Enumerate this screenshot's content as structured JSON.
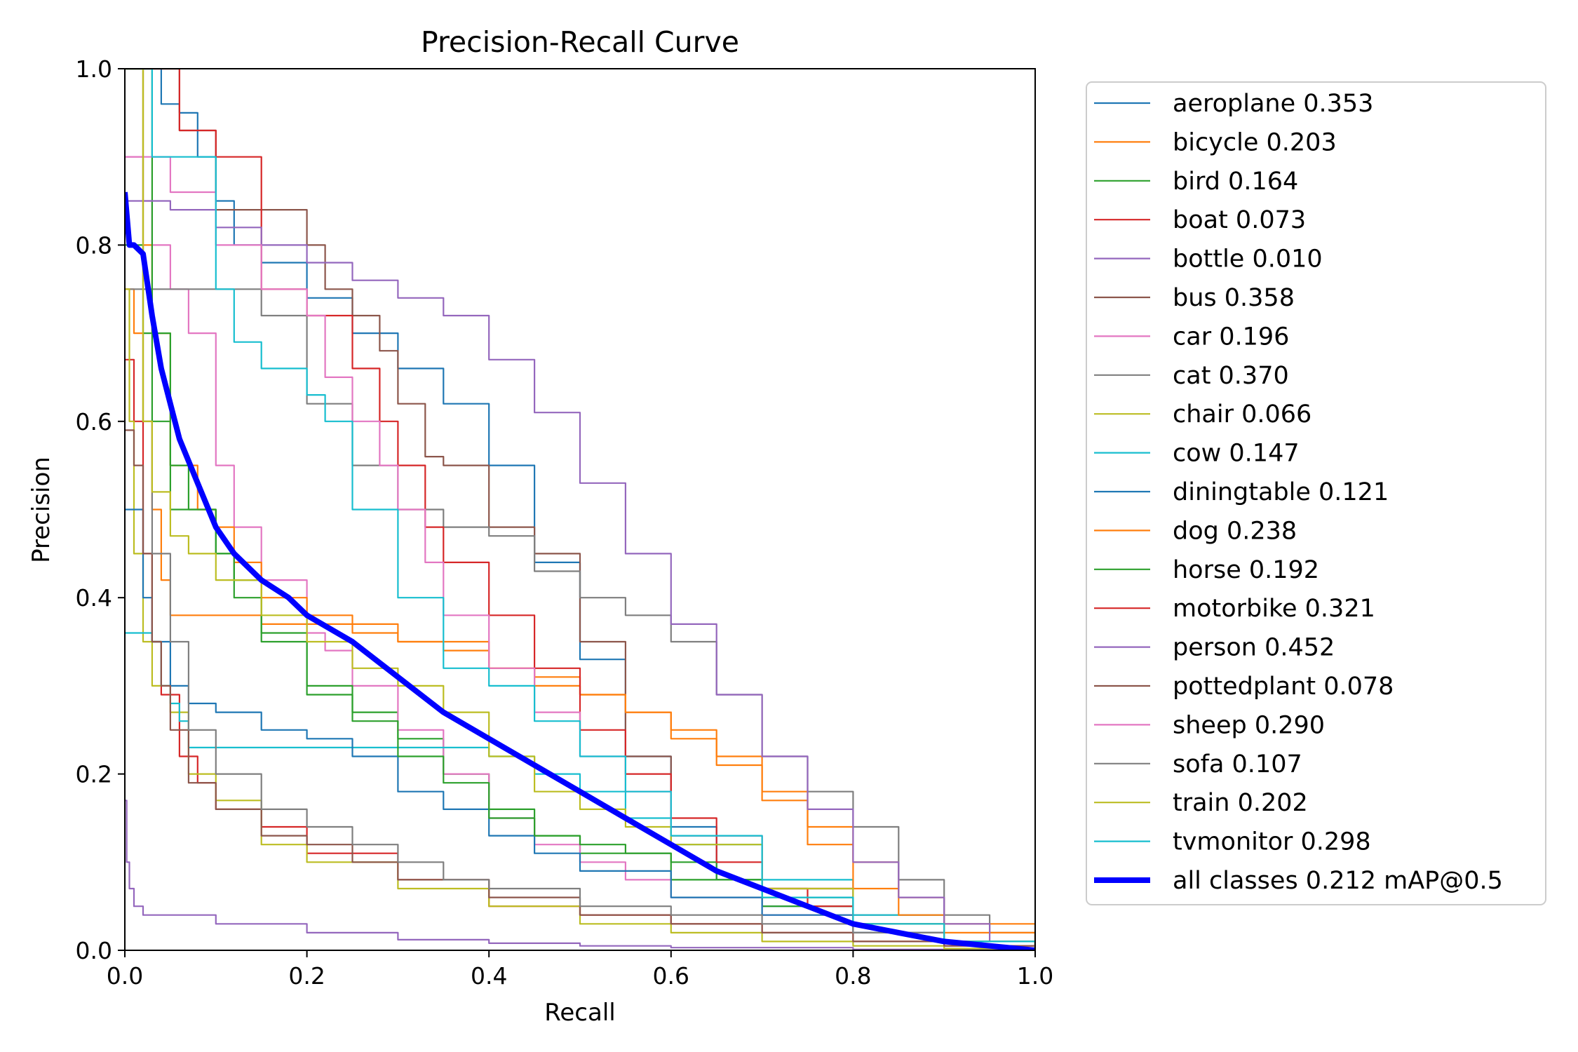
{
  "chart_data": {
    "type": "line",
    "title": "Precision-Recall Curve",
    "xlabel": "Recall",
    "ylabel": "Precision",
    "xlim": [
      0,
      1
    ],
    "ylim": [
      0,
      1
    ],
    "xticks": [
      "0.0",
      "0.2",
      "0.4",
      "0.6",
      "0.8",
      "1.0"
    ],
    "yticks": [
      "0.0",
      "0.2",
      "0.4",
      "0.6",
      "0.8",
      "1.0"
    ],
    "grid": false,
    "legend_position": "outside-right",
    "series": [
      {
        "name": "aeroplane 0.353",
        "color": "#1f77b4",
        "x": [
          0.0,
          0.02,
          0.04,
          0.06,
          0.08,
          0.1,
          0.12,
          0.15,
          0.2,
          0.25,
          0.3,
          0.35,
          0.4,
          0.45,
          0.5,
          0.55,
          0.6,
          0.65,
          0.7,
          0.8,
          0.9,
          1.0
        ],
        "y": [
          1.0,
          1.0,
          0.96,
          0.95,
          0.9,
          0.85,
          0.8,
          0.78,
          0.74,
          0.7,
          0.66,
          0.62,
          0.55,
          0.44,
          0.33,
          0.22,
          0.14,
          0.08,
          0.05,
          0.03,
          0.01,
          0.0
        ]
      },
      {
        "name": "bicycle 0.203",
        "color": "#ff7f0e",
        "x": [
          0.0,
          0.01,
          0.02,
          0.03,
          0.04,
          0.05,
          0.07,
          0.1,
          0.15,
          0.2,
          0.3,
          0.4,
          0.45,
          0.5,
          0.55,
          0.6,
          0.65,
          0.7,
          0.75,
          0.8,
          0.85,
          0.9,
          1.0
        ],
        "y": [
          0.75,
          0.7,
          0.6,
          0.5,
          0.42,
          0.38,
          0.38,
          0.38,
          0.37,
          0.37,
          0.35,
          0.32,
          0.3,
          0.29,
          0.27,
          0.25,
          0.22,
          0.18,
          0.14,
          0.1,
          0.06,
          0.03,
          0.0
        ]
      },
      {
        "name": "bird 0.164",
        "color": "#2ca02c",
        "x": [
          0.0,
          0.02,
          0.03,
          0.05,
          0.07,
          0.1,
          0.12,
          0.15,
          0.2,
          0.25,
          0.3,
          0.35,
          0.4,
          0.45,
          0.5,
          0.6,
          0.7,
          0.8,
          0.9,
          1.0
        ],
        "y": [
          0.8,
          0.7,
          0.6,
          0.5,
          0.5,
          0.45,
          0.42,
          0.36,
          0.29,
          0.27,
          0.24,
          0.2,
          0.16,
          0.13,
          0.11,
          0.08,
          0.05,
          0.02,
          0.01,
          0.0
        ]
      },
      {
        "name": "boat 0.073",
        "color": "#d62728",
        "x": [
          0.0,
          0.01,
          0.02,
          0.03,
          0.04,
          0.06,
          0.08,
          0.1,
          0.15,
          0.2,
          0.3,
          0.4,
          0.5,
          0.6,
          0.7,
          0.8,
          0.9,
          1.0
        ],
        "y": [
          0.67,
          0.6,
          0.45,
          0.35,
          0.29,
          0.22,
          0.19,
          0.16,
          0.14,
          0.11,
          0.08,
          0.05,
          0.04,
          0.03,
          0.02,
          0.01,
          0.005,
          0.0
        ]
      },
      {
        "name": "bottle 0.010",
        "color": "#9467bd",
        "x": [
          0.0,
          0.002,
          0.005,
          0.01,
          0.02,
          0.05,
          0.1,
          0.2,
          0.3,
          0.4,
          0.5,
          0.6,
          0.8,
          1.0
        ],
        "y": [
          0.17,
          0.1,
          0.07,
          0.05,
          0.04,
          0.04,
          0.03,
          0.02,
          0.012,
          0.008,
          0.005,
          0.003,
          0.001,
          0.0
        ]
      },
      {
        "name": "bus 0.358",
        "color": "#8c564b",
        "x": [
          0.0,
          0.05,
          0.06,
          0.08,
          0.1,
          0.15,
          0.2,
          0.22,
          0.25,
          0.28,
          0.3,
          0.33,
          0.35,
          0.4,
          0.45,
          0.5,
          0.55,
          0.6,
          0.7,
          0.8,
          0.9,
          1.0
        ],
        "y": [
          1.0,
          1.0,
          0.93,
          0.93,
          0.84,
          0.84,
          0.8,
          0.75,
          0.72,
          0.68,
          0.62,
          0.56,
          0.55,
          0.48,
          0.45,
          0.35,
          0.22,
          0.13,
          0.07,
          0.04,
          0.01,
          0.0
        ]
      },
      {
        "name": "car 0.196",
        "color": "#e377c2",
        "x": [
          0.0,
          0.02,
          0.03,
          0.05,
          0.07,
          0.1,
          0.12,
          0.15,
          0.2,
          0.22,
          0.25,
          0.3,
          0.35,
          0.4,
          0.45,
          0.5,
          0.55,
          0.6,
          0.7,
          0.8,
          0.9,
          1.0
        ],
        "y": [
          0.9,
          0.85,
          0.8,
          0.75,
          0.7,
          0.55,
          0.48,
          0.42,
          0.36,
          0.34,
          0.3,
          0.25,
          0.2,
          0.15,
          0.12,
          0.1,
          0.08,
          0.06,
          0.04,
          0.02,
          0.01,
          0.0
        ]
      },
      {
        "name": "cat 0.370",
        "color": "#7f7f7f",
        "x": [
          0.0,
          0.05,
          0.1,
          0.15,
          0.2,
          0.25,
          0.3,
          0.35,
          0.4,
          0.45,
          0.5,
          0.55,
          0.6,
          0.65,
          0.7,
          0.75,
          0.8,
          0.85,
          0.9,
          0.95,
          1.0
        ],
        "y": [
          0.75,
          0.75,
          0.75,
          0.72,
          0.62,
          0.55,
          0.5,
          0.48,
          0.47,
          0.43,
          0.4,
          0.38,
          0.35,
          0.29,
          0.22,
          0.18,
          0.14,
          0.08,
          0.04,
          0.02,
          0.0
        ]
      },
      {
        "name": "chair 0.066",
        "color": "#bcbd22",
        "x": [
          0.0,
          0.005,
          0.01,
          0.02,
          0.03,
          0.05,
          0.07,
          0.1,
          0.15,
          0.2,
          0.3,
          0.4,
          0.5,
          0.6,
          0.7,
          0.8,
          0.9,
          1.0
        ],
        "y": [
          0.75,
          0.6,
          0.45,
          0.35,
          0.3,
          0.27,
          0.2,
          0.17,
          0.12,
          0.1,
          0.07,
          0.05,
          0.03,
          0.02,
          0.01,
          0.005,
          0.002,
          0.0
        ]
      },
      {
        "name": "cow 0.147",
        "color": "#17becf",
        "x": [
          0.0,
          0.01,
          0.02,
          0.03,
          0.04,
          0.05,
          0.06,
          0.07,
          0.1,
          0.15,
          0.2,
          0.25,
          0.3,
          0.35,
          0.4,
          0.45,
          0.5,
          0.55,
          0.6,
          0.7,
          0.8,
          0.9,
          1.0
        ],
        "y": [
          0.36,
          0.36,
          0.36,
          0.35,
          0.3,
          0.28,
          0.26,
          0.23,
          0.23,
          0.23,
          0.23,
          0.23,
          0.23,
          0.23,
          0.22,
          0.2,
          0.18,
          0.15,
          0.12,
          0.08,
          0.04,
          0.01,
          0.0
        ]
      },
      {
        "name": "diningtable 0.121",
        "color": "#1f77b4",
        "x": [
          0.0,
          0.02,
          0.03,
          0.05,
          0.07,
          0.1,
          0.15,
          0.2,
          0.25,
          0.3,
          0.35,
          0.4,
          0.45,
          0.5,
          0.6,
          0.7,
          0.8,
          0.9,
          1.0
        ],
        "y": [
          0.5,
          0.4,
          0.35,
          0.3,
          0.28,
          0.27,
          0.25,
          0.24,
          0.22,
          0.18,
          0.16,
          0.13,
          0.11,
          0.09,
          0.06,
          0.04,
          0.02,
          0.01,
          0.0
        ]
      },
      {
        "name": "dog 0.238",
        "color": "#ff7f0e",
        "x": [
          0.0,
          0.02,
          0.03,
          0.05,
          0.08,
          0.1,
          0.12,
          0.15,
          0.2,
          0.25,
          0.3,
          0.35,
          0.4,
          0.45,
          0.5,
          0.55,
          0.6,
          0.65,
          0.7,
          0.75,
          0.8,
          0.85,
          0.9,
          1.0
        ],
        "y": [
          1.0,
          0.8,
          0.7,
          0.55,
          0.5,
          0.48,
          0.44,
          0.4,
          0.38,
          0.36,
          0.35,
          0.34,
          0.32,
          0.31,
          0.29,
          0.27,
          0.24,
          0.21,
          0.17,
          0.12,
          0.07,
          0.04,
          0.02,
          0.0
        ]
      },
      {
        "name": "horse 0.192",
        "color": "#2ca02c",
        "x": [
          0.0,
          0.03,
          0.05,
          0.07,
          0.1,
          0.12,
          0.15,
          0.2,
          0.25,
          0.3,
          0.35,
          0.4,
          0.45,
          0.5,
          0.55,
          0.6,
          0.65,
          0.7,
          0.8,
          0.9,
          1.0
        ],
        "y": [
          1.0,
          0.7,
          0.55,
          0.5,
          0.45,
          0.4,
          0.35,
          0.3,
          0.26,
          0.22,
          0.19,
          0.15,
          0.13,
          0.12,
          0.11,
          0.1,
          0.08,
          0.06,
          0.03,
          0.01,
          0.0
        ]
      },
      {
        "name": "motorbike 0.321",
        "color": "#d62728",
        "x": [
          0.0,
          0.06,
          0.08,
          0.1,
          0.15,
          0.2,
          0.25,
          0.28,
          0.3,
          0.33,
          0.35,
          0.4,
          0.45,
          0.5,
          0.55,
          0.6,
          0.65,
          0.7,
          0.75,
          0.8,
          0.9,
          1.0
        ],
        "y": [
          1.0,
          0.93,
          0.93,
          0.9,
          0.75,
          0.72,
          0.66,
          0.6,
          0.55,
          0.48,
          0.44,
          0.38,
          0.32,
          0.25,
          0.2,
          0.15,
          0.1,
          0.07,
          0.05,
          0.03,
          0.01,
          0.0
        ]
      },
      {
        "name": "person 0.452",
        "color": "#9467bd",
        "x": [
          0.0,
          0.05,
          0.1,
          0.15,
          0.2,
          0.25,
          0.3,
          0.35,
          0.4,
          0.45,
          0.5,
          0.55,
          0.6,
          0.65,
          0.7,
          0.75,
          0.8,
          0.85,
          0.9,
          0.95,
          1.0
        ],
        "y": [
          0.85,
          0.84,
          0.82,
          0.8,
          0.78,
          0.76,
          0.74,
          0.72,
          0.67,
          0.61,
          0.53,
          0.45,
          0.37,
          0.29,
          0.22,
          0.16,
          0.1,
          0.06,
          0.03,
          0.01,
          0.0
        ]
      },
      {
        "name": "pottedplant 0.078",
        "color": "#8c564b",
        "x": [
          0.0,
          0.01,
          0.02,
          0.03,
          0.04,
          0.05,
          0.07,
          0.1,
          0.15,
          0.2,
          0.25,
          0.3,
          0.4,
          0.5,
          0.6,
          0.7,
          0.8,
          0.9,
          1.0
        ],
        "y": [
          0.59,
          0.55,
          0.45,
          0.35,
          0.3,
          0.25,
          0.19,
          0.16,
          0.13,
          0.12,
          0.1,
          0.08,
          0.06,
          0.04,
          0.03,
          0.02,
          0.01,
          0.005,
          0.0
        ]
      },
      {
        "name": "sheep 0.290",
        "color": "#e377c2",
        "x": [
          0.0,
          0.05,
          0.1,
          0.15,
          0.2,
          0.22,
          0.25,
          0.28,
          0.3,
          0.33,
          0.35,
          0.4,
          0.45,
          0.5,
          0.55,
          0.6,
          0.7,
          0.8,
          0.9,
          1.0
        ],
        "y": [
          0.9,
          0.86,
          0.8,
          0.75,
          0.72,
          0.65,
          0.6,
          0.55,
          0.5,
          0.44,
          0.38,
          0.32,
          0.27,
          0.22,
          0.18,
          0.13,
          0.07,
          0.03,
          0.01,
          0.0
        ]
      },
      {
        "name": "sofa 0.107",
        "color": "#7f7f7f",
        "x": [
          0.0,
          0.02,
          0.03,
          0.05,
          0.07,
          0.1,
          0.15,
          0.2,
          0.25,
          0.3,
          0.35,
          0.4,
          0.5,
          0.6,
          0.7,
          0.8,
          0.9,
          1.0
        ],
        "y": [
          1.0,
          0.6,
          0.45,
          0.35,
          0.25,
          0.2,
          0.16,
          0.14,
          0.12,
          0.1,
          0.08,
          0.07,
          0.05,
          0.04,
          0.03,
          0.02,
          0.01,
          0.0
        ]
      },
      {
        "name": "train 0.202",
        "color": "#bcbd22",
        "x": [
          0.0,
          0.02,
          0.03,
          0.05,
          0.07,
          0.1,
          0.15,
          0.2,
          0.25,
          0.3,
          0.35,
          0.4,
          0.45,
          0.5,
          0.55,
          0.6,
          0.7,
          0.8,
          0.9,
          1.0
        ],
        "y": [
          1.0,
          0.6,
          0.52,
          0.47,
          0.45,
          0.42,
          0.38,
          0.35,
          0.32,
          0.3,
          0.27,
          0.22,
          0.18,
          0.16,
          0.14,
          0.12,
          0.07,
          0.03,
          0.01,
          0.0
        ]
      },
      {
        "name": "tvmonitor 0.298",
        "color": "#17becf",
        "x": [
          0.0,
          0.03,
          0.06,
          0.08,
          0.1,
          0.12,
          0.15,
          0.2,
          0.22,
          0.25,
          0.3,
          0.35,
          0.4,
          0.45,
          0.5,
          0.55,
          0.6,
          0.7,
          0.8,
          0.9,
          1.0
        ],
        "y": [
          1.0,
          0.9,
          0.9,
          0.9,
          0.75,
          0.69,
          0.66,
          0.63,
          0.6,
          0.5,
          0.4,
          0.32,
          0.3,
          0.26,
          0.22,
          0.18,
          0.13,
          0.06,
          0.03,
          0.01,
          0.0
        ]
      },
      {
        "name": "all classes 0.212 mAP@0.5",
        "color": "#0000ff",
        "bold": true,
        "x": [
          0.0,
          0.005,
          0.01,
          0.02,
          0.03,
          0.04,
          0.05,
          0.06,
          0.08,
          0.1,
          0.12,
          0.15,
          0.18,
          0.2,
          0.25,
          0.3,
          0.35,
          0.4,
          0.45,
          0.5,
          0.55,
          0.6,
          0.65,
          0.7,
          0.75,
          0.8,
          0.85,
          0.9,
          0.95,
          1.0
        ],
        "y": [
          0.86,
          0.8,
          0.8,
          0.79,
          0.72,
          0.66,
          0.62,
          0.58,
          0.53,
          0.48,
          0.45,
          0.42,
          0.4,
          0.38,
          0.35,
          0.31,
          0.27,
          0.24,
          0.21,
          0.18,
          0.15,
          0.12,
          0.09,
          0.07,
          0.05,
          0.03,
          0.02,
          0.01,
          0.005,
          0.0
        ]
      }
    ]
  }
}
